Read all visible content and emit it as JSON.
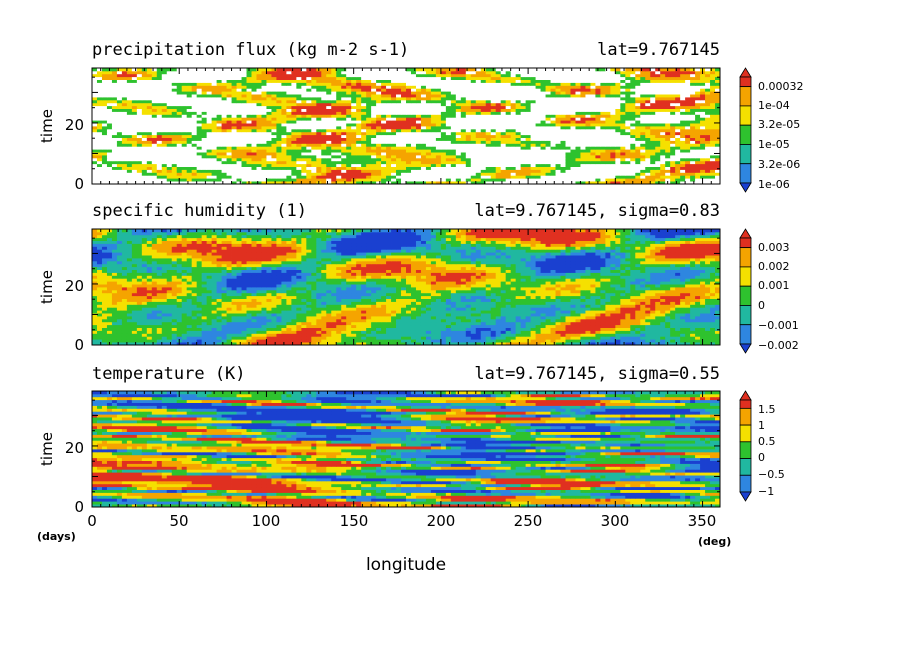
{
  "chart_data": [
    {
      "type": "heatmap",
      "title": "precipitation flux (kg m-2 s-1)",
      "subtitle": "lat=9.767145",
      "ylabel": "time",
      "yticks": [
        "0",
        "20"
      ],
      "ylim": [
        0,
        38
      ],
      "xlim": [
        0,
        360
      ],
      "colorbar": {
        "labels": [
          "0.00032",
          "1e-04",
          "3.2e-05",
          "1e-05",
          "3.2e-06",
          "1e-06"
        ],
        "colors": [
          "#e03020",
          "#f5a400",
          "#f5e000",
          "#2ec22e",
          "#20b8a0",
          "#2e86e0"
        ]
      },
      "pattern": {
        "kind": "sparse",
        "seed": 11,
        "slope": -0.32,
        "blank_color": "#ffffff"
      }
    },
    {
      "type": "heatmap",
      "title": "specific humidity (1)",
      "subtitle": "lat=9.767145, sigma=0.83",
      "ylabel": "time",
      "yticks": [
        "0",
        "20"
      ],
      "ylim": [
        0,
        38
      ],
      "xlim": [
        0,
        360
      ],
      "colorbar": {
        "labels": [
          "0.003",
          "0.002",
          "0.001",
          "0",
          "−0.001",
          "−0.002"
        ],
        "colors": [
          "#e03020",
          "#f5a400",
          "#f5e000",
          "#2ec22e",
          "#20b8a0",
          "#2e86e0"
        ]
      },
      "pattern": {
        "kind": "bands",
        "seed": 29,
        "slope": -0.42
      }
    },
    {
      "type": "heatmap",
      "title": "temperature (K)",
      "subtitle": "lat=9.767145, sigma=0.55",
      "ylabel": "time",
      "yticks": [
        "0",
        "20"
      ],
      "ylim": [
        0,
        38
      ],
      "xlim": [
        0,
        360
      ],
      "xticks": [
        "0",
        "50",
        "100",
        "150",
        "200",
        "250",
        "300",
        "350"
      ],
      "colorbar": {
        "labels": [
          "1.5",
          "1",
          "0.5",
          "0",
          "−0.5",
          "−1"
        ],
        "colors": [
          "#e03020",
          "#f5a400",
          "#f5e000",
          "#2ec22e",
          "#20b8a0",
          "#2e86e0"
        ]
      },
      "pattern": {
        "kind": "streaks",
        "seed": 47,
        "slope": 0.08
      }
    }
  ],
  "xaxis": {
    "label": "longitude",
    "unit_left": "(days)",
    "unit_right": "(deg)"
  },
  "colors": {
    "dark_blue": "#1a40d0",
    "below_min": "#2e86e0",
    "above_max": "#e03020"
  }
}
